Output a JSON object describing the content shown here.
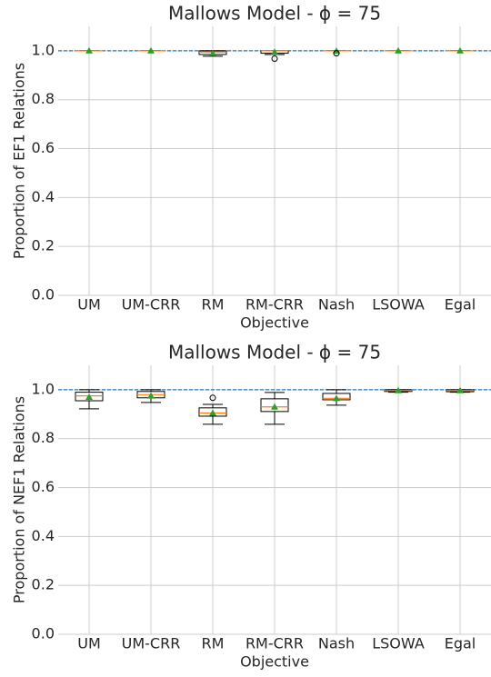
{
  "chart_data": [
    {
      "type": "box",
      "title": "Mallows Model - ϕ = 75",
      "x_label": "Objective",
      "y_label": "Proportion of EF1 Relations",
      "categories": [
        "UM",
        "UM-CRR",
        "RM",
        "RM-CRR",
        "Nash",
        "LSOWA",
        "Egal"
      ],
      "stats": [
        {
          "whislo": 1.0,
          "q1": 1.0,
          "median": 1.0,
          "q3": 1.0,
          "whishi": 1.0,
          "mean": 1.0,
          "fliers": []
        },
        {
          "whislo": 1.0,
          "q1": 1.0,
          "median": 1.0,
          "q3": 1.0,
          "whishi": 1.0,
          "mean": 1.0,
          "fliers": []
        },
        {
          "whislo": 0.978,
          "q1": 0.985,
          "median": 0.995,
          "q3": 1.0,
          "whishi": 1.0,
          "mean": 0.99,
          "fliers": []
        },
        {
          "whislo": 0.985,
          "q1": 0.99,
          "median": 1.0,
          "q3": 1.0,
          "whishi": 1.0,
          "mean": 0.995,
          "fliers": [
            0.968
          ]
        },
        {
          "whislo": 1.0,
          "q1": 1.0,
          "median": 1.0,
          "q3": 1.0,
          "whishi": 1.0,
          "mean": 0.999,
          "fliers": [
            0.99
          ]
        },
        {
          "whislo": 1.0,
          "q1": 1.0,
          "median": 1.0,
          "q3": 1.0,
          "whishi": 1.0,
          "mean": 1.0,
          "fliers": []
        },
        {
          "whislo": 1.0,
          "q1": 1.0,
          "median": 1.0,
          "q3": 1.0,
          "whishi": 1.0,
          "mean": 1.0,
          "fliers": []
        }
      ],
      "box_color": "#000000",
      "median_color": "#ff7f0e",
      "mean_color": "#2ca02c",
      "reference_line": 1.0,
      "reference_color": "#1f77b4",
      "ylim": [
        0,
        1.1
      ],
      "yticks": [
        {
          "value": 0,
          "label": "0.0"
        },
        {
          "value": 0.2,
          "label": "0.2"
        },
        {
          "value": 0.4,
          "label": "0.4"
        },
        {
          "value": 0.6,
          "label": "0.6"
        },
        {
          "value": 0.8,
          "label": "0.8"
        },
        {
          "value": 1.0,
          "label": "1.0"
        }
      ],
      "grid": true
    },
    {
      "type": "box",
      "title": "Mallows Model - ϕ = 75",
      "x_label": "Objective",
      "y_label": "Proportion of NEF1 Relations",
      "categories": [
        "UM",
        "UM-CRR",
        "RM",
        "RM-CRR",
        "Nash",
        "LSOWA",
        "Egal"
      ],
      "stats": [
        {
          "whislo": 0.922,
          "q1": 0.955,
          "median": 0.975,
          "q3": 0.99,
          "whishi": 1.0,
          "mean": 0.97,
          "fliers": []
        },
        {
          "whislo": 0.948,
          "q1": 0.967,
          "median": 0.98,
          "q3": 0.993,
          "whishi": 1.0,
          "mean": 0.975,
          "fliers": []
        },
        {
          "whislo": 0.859,
          "q1": 0.892,
          "median": 0.905,
          "q3": 0.926,
          "whishi": 0.94,
          "mean": 0.905,
          "fliers": [
            0.967
          ]
        },
        {
          "whislo": 0.859,
          "q1": 0.911,
          "median": 0.93,
          "q3": 0.963,
          "whishi": 0.989,
          "mean": 0.93,
          "fliers": []
        },
        {
          "whislo": 0.937,
          "q1": 0.959,
          "median": 0.965,
          "q3": 0.985,
          "whishi": 1.0,
          "mean": 0.965,
          "fliers": []
        },
        {
          "whislo": 0.99,
          "q1": 0.993,
          "median": 0.997,
          "q3": 1.0,
          "whishi": 1.0,
          "mean": 0.997,
          "fliers": []
        },
        {
          "whislo": 0.99,
          "q1": 0.992,
          "median": 0.997,
          "q3": 1.0,
          "whishi": 1.0,
          "mean": 0.997,
          "fliers": []
        }
      ],
      "box_color": "#000000",
      "median_color": "#ff7f0e",
      "mean_color": "#2ca02c",
      "reference_line": 1.0,
      "reference_color": "#1f77b4",
      "ylim": [
        0,
        1.1
      ],
      "yticks": [
        {
          "value": 0,
          "label": "0.0"
        },
        {
          "value": 0.2,
          "label": "0.2"
        },
        {
          "value": 0.4,
          "label": "0.4"
        },
        {
          "value": 0.6,
          "label": "0.6"
        },
        {
          "value": 0.8,
          "label": "0.8"
        },
        {
          "value": 1.0,
          "label": "1.0"
        }
      ],
      "grid": true
    }
  ]
}
